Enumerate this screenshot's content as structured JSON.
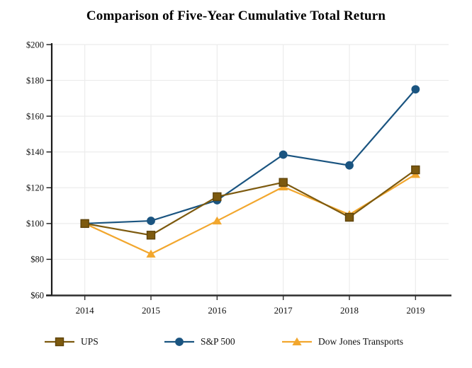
{
  "title": "Comparison of Five-Year Cumulative Total Return",
  "chart_data": {
    "type": "line",
    "title": "Comparison of Five-Year Cumulative Total Return",
    "x": [
      2014,
      2015,
      2016,
      2017,
      2018,
      2019
    ],
    "x_labels": [
      "2014",
      "2015",
      "2016",
      "2017",
      "2018",
      "2019"
    ],
    "series": [
      {
        "name": "UPS",
        "marker": "square",
        "color": "#7D5A0F",
        "marker_stroke": "#5E430A",
        "values": [
          100,
          93.5,
          115,
          123,
          103.5,
          130
        ]
      },
      {
        "name": "S&P 500",
        "marker": "circle",
        "color": "#1A5480",
        "marker_stroke": "#1A5480",
        "values": [
          100,
          101.5,
          113,
          138.5,
          132.5,
          175
        ]
      },
      {
        "name": "Dow Jones Transports",
        "marker": "triangle",
        "color": "#F2A72E",
        "marker_stroke": "#F2A72E",
        "values": [
          100,
          83,
          101.5,
          120.5,
          105,
          127.5
        ]
      }
    ],
    "ylim": [
      60,
      200
    ],
    "ytick_step": 20,
    "ytick_labels": [
      "$60",
      "$80",
      "$100",
      "$120",
      "$140",
      "$160",
      "$180",
      "$200"
    ],
    "xlabel": "",
    "ylabel": "",
    "grid": true,
    "gridline_color": "#ECECEC",
    "axis_color": "#1A1A1A",
    "x_axis_color": "#2E2E2E",
    "text_color": "#111111",
    "legend_position": "bottom",
    "draw_order": [
      1,
      2,
      0
    ]
  }
}
